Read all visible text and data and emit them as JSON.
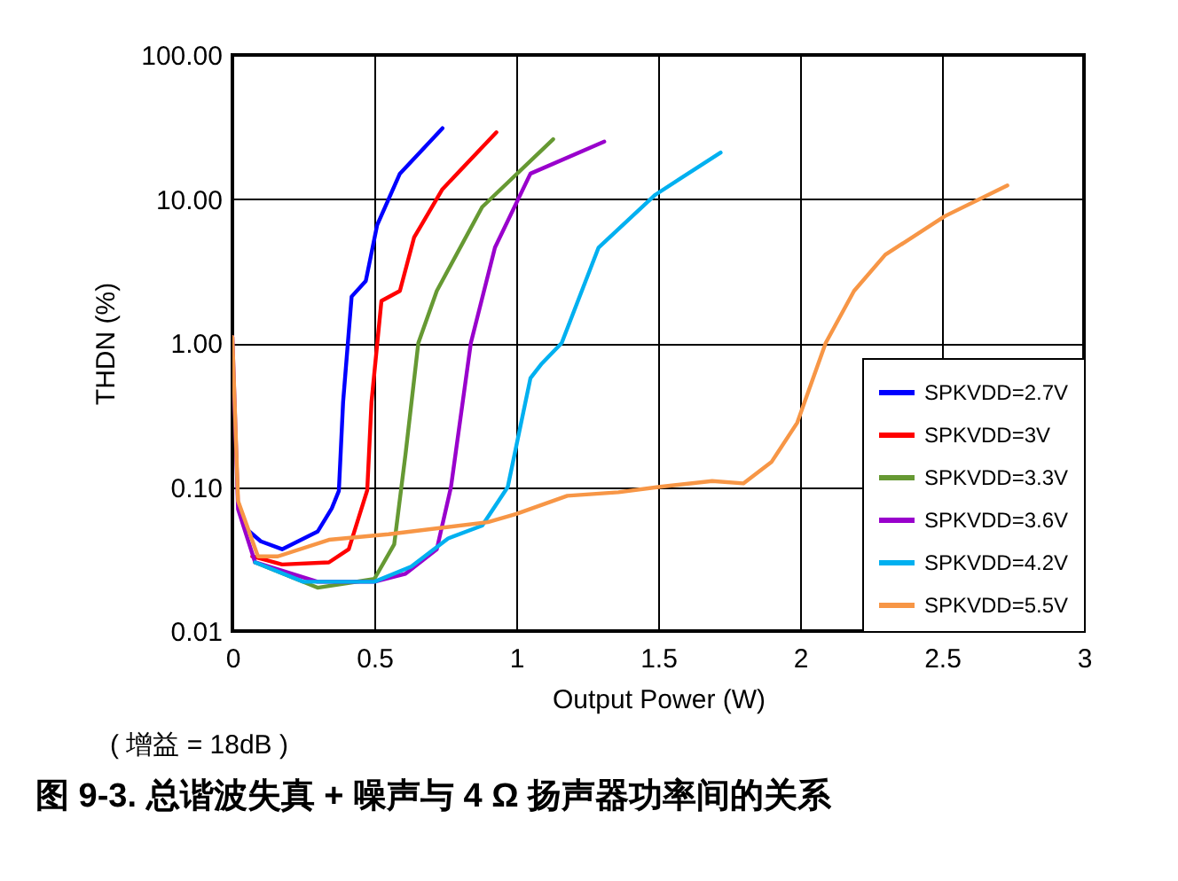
{
  "chart_data": {
    "type": "line",
    "title": "图 9-3. 总谐波失真 + 噪声与 4 Ω 扬声器功率间的关系",
    "xlabel": "Output Power (W)",
    "ylabel": "THDN (%)",
    "annotations": [
      "( 增益 = 18dB )"
    ],
    "xlim": [
      0,
      3
    ],
    "xticks": [
      0,
      0.5,
      1,
      1.5,
      2,
      2.5,
      3
    ],
    "ylim": [
      0.01,
      100
    ],
    "yticks": [
      {
        "value": 0.01,
        "label": "0.01"
      },
      {
        "value": 0.1,
        "label": "0.10"
      },
      {
        "value": 1,
        "label": "1.00"
      },
      {
        "value": 10,
        "label": "10.00"
      },
      {
        "value": 100,
        "label": "100.00"
      }
    ],
    "log": "y",
    "grid": true,
    "legend": "bottom right",
    "line_style": "solid",
    "marker": "none",
    "series": [
      {
        "name": "SPKVDD=2.7V",
        "color": "#0000ff",
        "x": [
          0.05,
          0.1,
          0.175,
          0.3,
          0.35,
          0.375,
          0.39,
          0.42,
          0.47,
          0.51,
          0.59,
          0.74
        ],
        "values": [
          0.051,
          0.042,
          0.037,
          0.049,
          0.071,
          0.094,
          0.39,
          2.1,
          2.7,
          6.6,
          15,
          31
        ]
      },
      {
        "name": "SPKVDD=3V",
        "color": "#ff0000",
        "x": [
          0.07,
          0.175,
          0.34,
          0.41,
          0.475,
          0.49,
          0.525,
          0.59,
          0.64,
          0.74,
          0.93
        ],
        "values": [
          0.033,
          0.029,
          0.03,
          0.037,
          0.095,
          0.39,
          1.96,
          2.3,
          5.4,
          11.7,
          29
        ]
      },
      {
        "name": "SPKVDD=3.3V",
        "color": "#669933",
        "x": [
          0.08,
          0.3,
          0.5,
          0.57,
          0.61,
          0.655,
          0.72,
          0.88,
          1.13
        ],
        "values": [
          0.03,
          0.02,
          0.023,
          0.04,
          0.17,
          1.0,
          2.3,
          8.8,
          26
        ]
      },
      {
        "name": "SPKVDD=3.6V",
        "color": "#9900cc",
        "x": [
          0,
          0.02,
          0.08,
          0.3,
          0.5,
          0.61,
          0.72,
          0.77,
          0.84,
          0.925,
          1.05,
          1.31
        ],
        "values": [
          1.1,
          0.07,
          0.03,
          0.022,
          0.022,
          0.025,
          0.037,
          0.1,
          1.0,
          4.6,
          15,
          25
        ]
      },
      {
        "name": "SPKVDD=4.2V",
        "color": "#00b0f0",
        "x": [
          0.08,
          0.25,
          0.5,
          0.63,
          0.76,
          0.88,
          0.97,
          1.05,
          1.09,
          1.16,
          1.29,
          1.49,
          1.72
        ],
        "values": [
          0.03,
          0.022,
          0.022,
          0.028,
          0.044,
          0.054,
          0.1,
          0.57,
          0.72,
          1.0,
          4.6,
          10.7,
          21
        ]
      },
      {
        "name": "SPKVDD=5.5V",
        "color": "#f79646",
        "x": [
          0,
          0.02,
          0.09,
          0.16,
          0.34,
          0.55,
          0.9,
          1.0,
          1.18,
          1.36,
          1.5,
          1.69,
          1.8,
          1.9,
          1.99,
          2.09,
          2.19,
          2.3,
          2.51,
          2.73
        ],
        "values": [
          1.1,
          0.08,
          0.033,
          0.033,
          0.043,
          0.047,
          0.057,
          0.065,
          0.087,
          0.092,
          0.1,
          0.11,
          0.106,
          0.15,
          0.28,
          1.0,
          2.3,
          4.1,
          7.6,
          12.4
        ]
      }
    ]
  }
}
